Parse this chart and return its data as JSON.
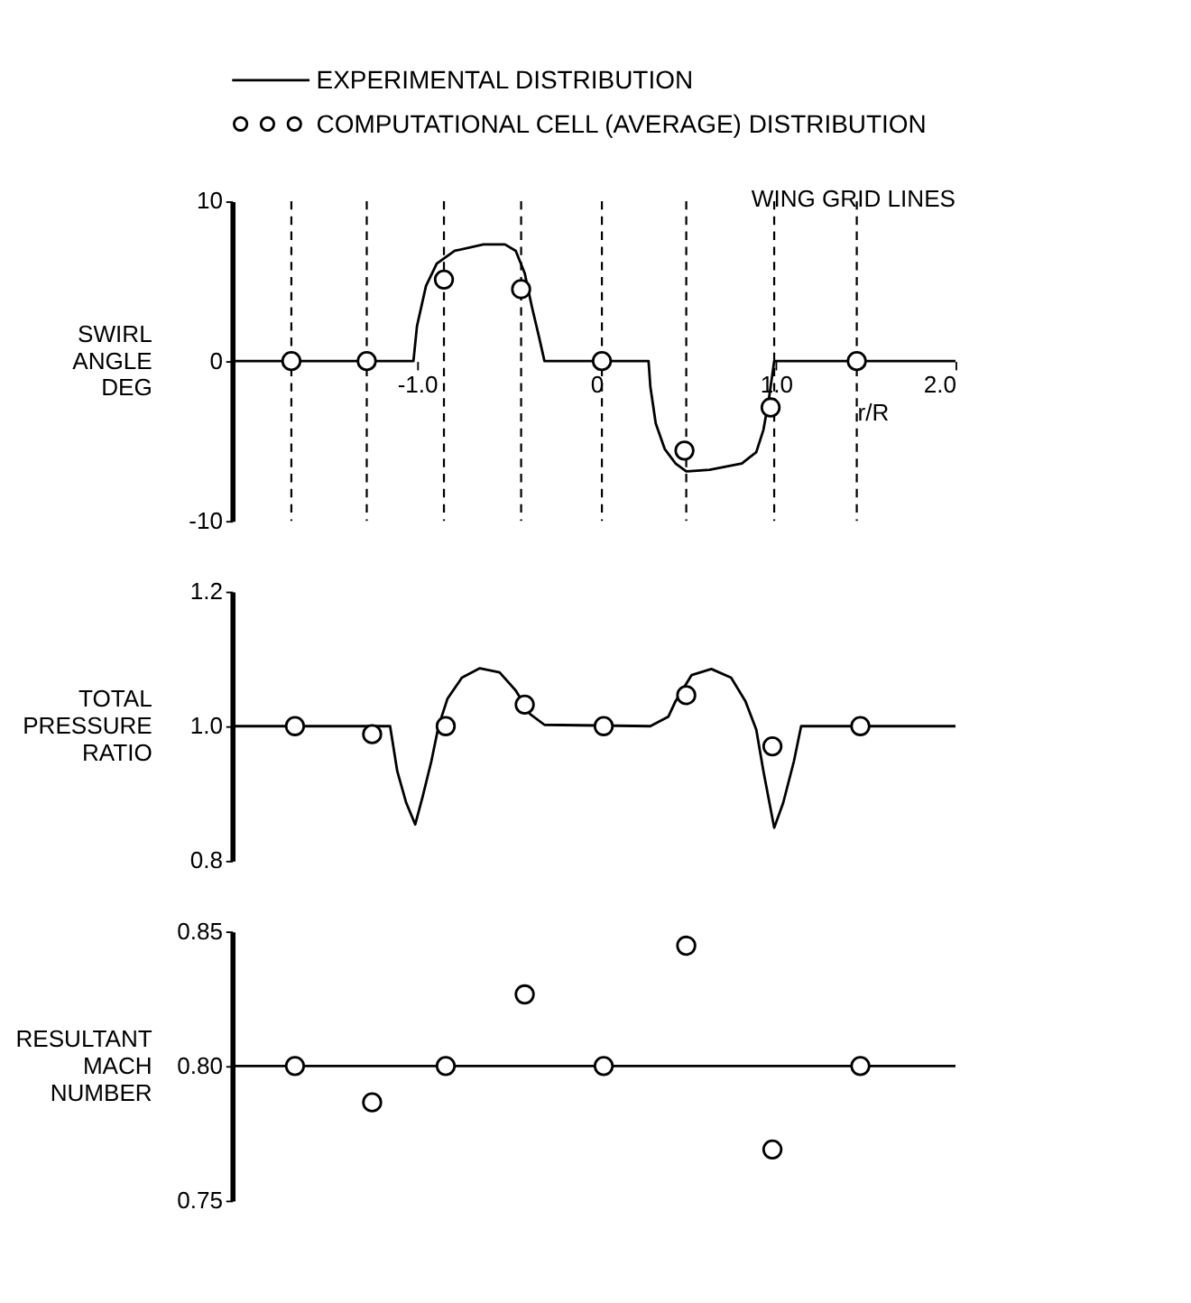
{
  "chart_data": [
    {
      "type": "line",
      "legend": "top",
      "ylabel": "SWIRL ANGLE DEG",
      "xlabel": "r/R",
      "xlim": [
        -2.03,
        2.0
      ],
      "ylim": [
        -10,
        10
      ],
      "yticks": [
        -10,
        0,
        10
      ],
      "xticks": [
        {
          "value": -1,
          "label": "-1.0"
        },
        0,
        {
          "value": 1,
          "label": "1.0"
        },
        {
          "value": 2,
          "label": "2.0"
        }
      ],
      "grid": false,
      "annotations": [
        "WING GRID LINES"
      ],
      "ref_lines": [
        {
          "axis": "x",
          "value": -1.7,
          "line_style": "dashed"
        },
        {
          "axis": "x",
          "value": -1.28,
          "line_style": "dashed"
        },
        {
          "axis": "x",
          "value": -0.85,
          "line_style": "dashed"
        },
        {
          "axis": "x",
          "value": -0.42,
          "line_style": "dashed"
        },
        {
          "axis": "x",
          "value": 0.03,
          "line_style": "dashed"
        },
        {
          "axis": "x",
          "value": 0.5,
          "line_style": "dashed"
        },
        {
          "axis": "x",
          "value": 0.99,
          "line_style": "dashed"
        },
        {
          "axis": "x",
          "value": 1.45,
          "line_style": "dashed"
        }
      ],
      "series": [
        {
          "name": "EXPERIMENTAL DISTRIBUTION",
          "color": "#000000",
          "line_style": "solid",
          "marker": "none",
          "x": [
            -2.03,
            -1.02,
            -1.0,
            -0.95,
            -0.89,
            -0.79,
            -0.63,
            -0.51,
            -0.45,
            -0.4,
            -0.36,
            -0.32,
            -0.29,
            0.29,
            0.3,
            0.33,
            0.38,
            0.44,
            0.5,
            0.63,
            0.81,
            0.89,
            0.93,
            0.96,
            0.98,
            0.99,
            2.0
          ],
          "values": [
            0,
            0,
            2.2,
            4.7,
            6.1,
            6.9,
            7.3,
            7.3,
            6.9,
            5.5,
            3.4,
            1.5,
            0,
            0,
            -1.6,
            -3.9,
            -5.5,
            -6.4,
            -6.9,
            -6.8,
            -6.4,
            -5.7,
            -4.3,
            -2.4,
            -0.8,
            0,
            0
          ]
        },
        {
          "name": "COMPUTATIONAL CELL (AVERAGE) DISTRIBUTION",
          "type": "scatter",
          "color": "#000000",
          "marker": "circle",
          "x": [
            -1.7,
            -1.28,
            -0.85,
            -0.42,
            0.03,
            0.49,
            0.97,
            1.45
          ],
          "values": [
            0,
            0,
            5.1,
            4.5,
            0,
            -5.6,
            -2.9,
            0
          ]
        }
      ]
    },
    {
      "type": "line",
      "ylabel": "TOTAL PRESSURE RATIO",
      "tick_labels": "y",
      "xlim": [
        -2.03,
        2.0
      ],
      "ylim": [
        0.8,
        1.2
      ],
      "yticks": [
        0.8,
        {
          "value": 1,
          "label": "1.0"
        },
        1.2
      ],
      "grid": false,
      "series": [
        {
          "color": "#000000",
          "line_style": "solid",
          "marker": "none",
          "x": [
            -2.03,
            -1.15,
            -1.11,
            -1.06,
            -1.01,
            -0.97,
            -0.92,
            -0.88,
            -0.83,
            -0.75,
            -0.65,
            -0.54,
            -0.45,
            -0.37,
            -0.29,
            0.3,
            0.4,
            0.44,
            0.53,
            0.64,
            0.75,
            0.83,
            0.89,
            0.93,
            0.99,
            1.04,
            1.1,
            1.14,
            2.0
          ],
          "values": [
            1.0,
            1.0,
            0.933,
            0.886,
            0.854,
            0.894,
            0.948,
            1.0,
            1.041,
            1.072,
            1.086,
            1.08,
            1.053,
            1.018,
            1.002,
            1.0,
            1.014,
            1.037,
            1.076,
            1.085,
            1.072,
            1.037,
            0.995,
            0.933,
            0.849,
            0.886,
            0.948,
            1.0,
            1.0
          ]
        },
        {
          "type": "scatter",
          "color": "#000000",
          "marker": "circle",
          "x": [
            -1.68,
            -1.25,
            -0.84,
            -0.4,
            0.04,
            0.5,
            0.98,
            1.47
          ],
          "values": [
            1.0,
            0.988,
            1.0,
            1.032,
            1.0,
            1.046,
            0.97,
            1.0
          ]
        }
      ]
    },
    {
      "type": "scatter",
      "ylabel": "RESULTANT MACH NUMBER",
      "tick_labels": "y",
      "xlim": [
        -2.03,
        2.0
      ],
      "ylim": [
        0.75,
        0.85
      ],
      "yticks": [
        0.75,
        {
          "value": 0.8,
          "label": "0.80"
        },
        0.85
      ],
      "grid": false,
      "ref_lines": [
        {
          "axis": "y",
          "value": 0.8,
          "line_style": "solid"
        }
      ],
      "series": [
        {
          "color": "#000000",
          "marker": "circle",
          "x": [
            -1.68,
            -1.25,
            -0.84,
            -0.4,
            0.04,
            0.5,
            0.98,
            1.47
          ],
          "values": [
            0.8,
            0.7865,
            0.8,
            0.8266,
            0.8,
            0.8447,
            0.769,
            0.8
          ]
        }
      ]
    }
  ]
}
